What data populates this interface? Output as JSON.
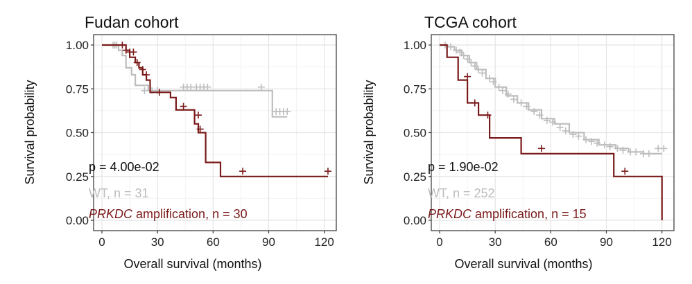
{
  "figure": {
    "background": "#ffffff"
  },
  "chart_data": [
    {
      "type": "line",
      "subtype": "kaplan-meier",
      "title": "Fudan cohort",
      "xlabel": "Overall survival (months)",
      "ylabel": "Survival probability",
      "xlim": [
        0,
        122
      ],
      "ylim": [
        0,
        1
      ],
      "xticks": [
        0,
        30,
        60,
        90,
        120
      ],
      "yticks": [
        0.0,
        0.25,
        0.5,
        0.75,
        1.0
      ],
      "ytick_labels": [
        "0.00",
        "0.25",
        "0.50",
        "0.75",
        "1.00"
      ],
      "grid": true,
      "pvalue_text": "p = 4.00e-02",
      "series": [
        {
          "name": "WT",
          "legend_text": "WT, n = 31",
          "color": "#bdbdbd",
          "steps": [
            [
              0,
              1.0
            ],
            [
              9,
              0.97
            ],
            [
              11,
              0.94
            ],
            [
              13,
              0.87
            ],
            [
              16,
              0.83
            ],
            [
              18,
              0.77
            ],
            [
              25,
              0.74
            ],
            [
              92,
              0.59
            ],
            [
              100,
              0.59
            ]
          ],
          "censored": [
            [
              6,
              1.0
            ],
            [
              7,
              1.0
            ],
            [
              8,
              1.0
            ],
            [
              23,
              0.74
            ],
            [
              27,
              0.74
            ],
            [
              30,
              0.74
            ],
            [
              44,
              0.76
            ],
            [
              46,
              0.76
            ],
            [
              48,
              0.76
            ],
            [
              51,
              0.76
            ],
            [
              53,
              0.76
            ],
            [
              55,
              0.76
            ],
            [
              57,
              0.76
            ],
            [
              86,
              0.76
            ],
            [
              94,
              0.62
            ],
            [
              96,
              0.62
            ],
            [
              98,
              0.62
            ],
            [
              100,
              0.62
            ]
          ]
        },
        {
          "name": "PRKDC amplification",
          "legend_italic": "PRKDC",
          "legend_rest": " amplification, n = 30",
          "color": "#7b1a1a",
          "steps": [
            [
              0,
              1.0
            ],
            [
              13,
              0.97
            ],
            [
              15,
              0.93
            ],
            [
              18,
              0.9
            ],
            [
              20,
              0.87
            ],
            [
              22,
              0.83
            ],
            [
              24,
              0.8
            ],
            [
              26,
              0.73
            ],
            [
              37,
              0.7
            ],
            [
              40,
              0.63
            ],
            [
              50,
              0.55
            ],
            [
              52,
              0.5
            ],
            [
              56,
              0.33
            ],
            [
              64,
              0.25
            ],
            [
              122,
              0.25
            ]
          ],
          "censored": [
            [
              11,
              1.0
            ],
            [
              13,
              0.97
            ],
            [
              15,
              0.96
            ],
            [
              17,
              0.96
            ],
            [
              19,
              0.9
            ],
            [
              22,
              0.86
            ],
            [
              24,
              0.83
            ],
            [
              31,
              0.73
            ],
            [
              44,
              0.65
            ],
            [
              52,
              0.6
            ],
            [
              53,
              0.52
            ],
            [
              76,
              0.28
            ],
            [
              122,
              0.28
            ]
          ]
        }
      ]
    },
    {
      "type": "line",
      "subtype": "kaplan-meier",
      "title": "TCGA cohort",
      "xlabel": "Overall survival (months)",
      "ylabel": "Survival probability",
      "xlim": [
        0,
        122
      ],
      "ylim": [
        0,
        1
      ],
      "xticks": [
        0,
        30,
        60,
        90,
        120
      ],
      "yticks": [
        0.0,
        0.25,
        0.5,
        0.75,
        1.0
      ],
      "ytick_labels": [
        "0.00",
        "0.25",
        "0.50",
        "0.75",
        "1.00"
      ],
      "grid": true,
      "pvalue_text": "p = 1.90e-02",
      "series": [
        {
          "name": "WT",
          "legend_text": "WT, n = 252",
          "color": "#bdbdbd",
          "steps": [
            [
              0,
              1.0
            ],
            [
              4,
              0.99
            ],
            [
              8,
              0.97
            ],
            [
              12,
              0.94
            ],
            [
              16,
              0.9
            ],
            [
              20,
              0.86
            ],
            [
              25,
              0.81
            ],
            [
              30,
              0.76
            ],
            [
              36,
              0.71
            ],
            [
              42,
              0.67
            ],
            [
              48,
              0.63
            ],
            [
              55,
              0.58
            ],
            [
              62,
              0.55
            ],
            [
              70,
              0.5
            ],
            [
              78,
              0.46
            ],
            [
              86,
              0.43
            ],
            [
              95,
              0.41
            ],
            [
              102,
              0.39
            ],
            [
              110,
              0.38
            ],
            [
              120,
              0.38
            ]
          ],
          "censored": [
            [
              3,
              1.0
            ],
            [
              6,
              0.99
            ],
            [
              9,
              0.97
            ],
            [
              11,
              0.96
            ],
            [
              13,
              0.94
            ],
            [
              15,
              0.92
            ],
            [
              17,
              0.9
            ],
            [
              19,
              0.88
            ],
            [
              21,
              0.86
            ],
            [
              23,
              0.84
            ],
            [
              27,
              0.81
            ],
            [
              29,
              0.79
            ],
            [
              32,
              0.76
            ],
            [
              34,
              0.74
            ],
            [
              37,
              0.72
            ],
            [
              40,
              0.69
            ],
            [
              44,
              0.67
            ],
            [
              47,
              0.65
            ],
            [
              51,
              0.62
            ],
            [
              54,
              0.6
            ],
            [
              58,
              0.57
            ],
            [
              61,
              0.56
            ],
            [
              65,
              0.53
            ],
            [
              68,
              0.51
            ],
            [
              72,
              0.49
            ],
            [
              75,
              0.48
            ],
            [
              79,
              0.46
            ],
            [
              82,
              0.45
            ],
            [
              85,
              0.44
            ],
            [
              89,
              0.43
            ],
            [
              92,
              0.42
            ],
            [
              96,
              0.41
            ],
            [
              99,
              0.4
            ],
            [
              103,
              0.39
            ],
            [
              106,
              0.39
            ],
            [
              110,
              0.38
            ],
            [
              113,
              0.38
            ],
            [
              118,
              0.41
            ],
            [
              121,
              0.41
            ]
          ]
        },
        {
          "name": "PRKDC amplification",
          "legend_italic": "PRKDC",
          "legend_rest": " amplification, n = 15",
          "color": "#7b1a1a",
          "steps": [
            [
              0,
              1.0
            ],
            [
              4,
              0.93
            ],
            [
              10,
              0.8
            ],
            [
              15,
              0.67
            ],
            [
              21,
              0.6
            ],
            [
              27,
              0.47
            ],
            [
              44,
              0.38
            ],
            [
              94,
              0.25
            ],
            [
              120,
              0.0
            ]
          ],
          "censored": [
            [
              15,
              0.82
            ],
            [
              19,
              0.67
            ],
            [
              26,
              0.6
            ],
            [
              55,
              0.41
            ],
            [
              100,
              0.28
            ]
          ]
        }
      ]
    }
  ]
}
